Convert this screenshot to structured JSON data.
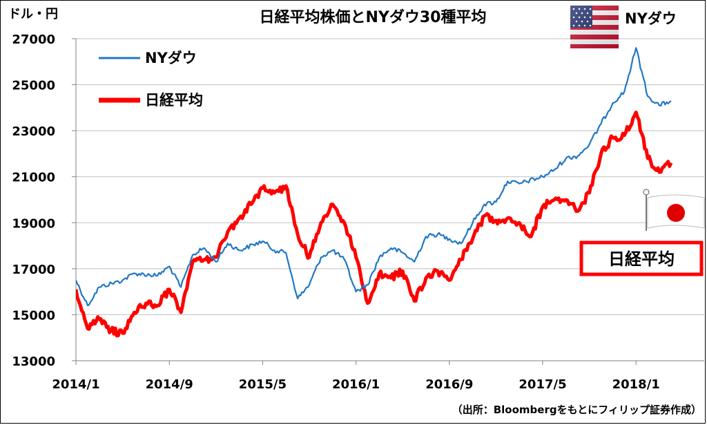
{
  "chart_data": {
    "type": "line",
    "title": "日経平均株価とNYダウ30種平均",
    "ylabel": "ドル・円",
    "ylim": [
      13000,
      27000
    ],
    "y_ticks": [
      "27000",
      "25000",
      "23000",
      "21000",
      "19000",
      "17000",
      "15000",
      "13000"
    ],
    "x_ticks": [
      "2014/1",
      "2014/9",
      "2015/5",
      "2016/1",
      "2016/9",
      "2017/5",
      "2018/1"
    ],
    "grid": true,
    "legend_position": "top-left",
    "source": "（出所：Bloombergをもとにフィリップ証券作成）",
    "callouts": {
      "nydow": "NYダウ",
      "nikkei": "日経平均"
    },
    "series": [
      {
        "name": "NYダウ",
        "color": "#1f77c4",
        "points": [
          [
            "2014-01",
            16500
          ],
          [
            "2014-02",
            15400
          ],
          [
            "2014-03",
            16200
          ],
          [
            "2014-05",
            16500
          ],
          [
            "2014-06",
            16800
          ],
          [
            "2014-08",
            16700
          ],
          [
            "2014-09",
            17100
          ],
          [
            "2014-10",
            16200
          ],
          [
            "2014-11",
            17600
          ],
          [
            "2014-12",
            17900
          ],
          [
            "2015-01",
            17300
          ],
          [
            "2015-02",
            18100
          ],
          [
            "2015-03",
            17800
          ],
          [
            "2015-05",
            18200
          ],
          [
            "2015-06",
            17800
          ],
          [
            "2015-07",
            17700
          ],
          [
            "2015-08",
            15700
          ],
          [
            "2015-09",
            16300
          ],
          [
            "2015-10",
            17500
          ],
          [
            "2015-11",
            17800
          ],
          [
            "2015-12",
            17400
          ],
          [
            "2016-01",
            16000
          ],
          [
            "2016-02",
            16300
          ],
          [
            "2016-03",
            17500
          ],
          [
            "2016-04",
            17900
          ],
          [
            "2016-05",
            17700
          ],
          [
            "2016-06",
            17300
          ],
          [
            "2016-07",
            18400
          ],
          [
            "2016-08",
            18500
          ],
          [
            "2016-09",
            18300
          ],
          [
            "2016-10",
            18100
          ],
          [
            "2016-11",
            19000
          ],
          [
            "2016-12",
            19800
          ],
          [
            "2017-01",
            19900
          ],
          [
            "2017-02",
            20800
          ],
          [
            "2017-03",
            20700
          ],
          [
            "2017-05",
            21000
          ],
          [
            "2017-06",
            21300
          ],
          [
            "2017-07",
            21800
          ],
          [
            "2017-08",
            21900
          ],
          [
            "2017-09",
            22400
          ],
          [
            "2017-10",
            23300
          ],
          [
            "2017-11",
            24200
          ],
          [
            "2017-12",
            24700
          ],
          [
            "2018-01",
            26600
          ],
          [
            "2018-02",
            24500
          ],
          [
            "2018-03",
            24100
          ],
          [
            "2018-04",
            24300
          ]
        ]
      },
      {
        "name": "日経平均",
        "color": "#ff0000",
        "points": [
          [
            "2014-01",
            16100
          ],
          [
            "2014-02",
            14400
          ],
          [
            "2014-03",
            14800
          ],
          [
            "2014-04",
            14300
          ],
          [
            "2014-05",
            14200
          ],
          [
            "2014-06",
            15100
          ],
          [
            "2014-07",
            15500
          ],
          [
            "2014-08",
            15400
          ],
          [
            "2014-09",
            16100
          ],
          [
            "2014-10",
            15100
          ],
          [
            "2014-11",
            17300
          ],
          [
            "2014-12",
            17400
          ],
          [
            "2015-01",
            17500
          ],
          [
            "2015-02",
            18600
          ],
          [
            "2015-03",
            19200
          ],
          [
            "2015-04",
            19800
          ],
          [
            "2015-05",
            20500
          ],
          [
            "2015-06",
            20300
          ],
          [
            "2015-07",
            20600
          ],
          [
            "2015-08",
            18500
          ],
          [
            "2015-09",
            17500
          ],
          [
            "2015-10",
            19000
          ],
          [
            "2015-11",
            19800
          ],
          [
            "2015-12",
            19000
          ],
          [
            "2016-01",
            17500
          ],
          [
            "2016-02",
            15500
          ],
          [
            "2016-03",
            16800
          ],
          [
            "2016-04",
            16600
          ],
          [
            "2016-05",
            16900
          ],
          [
            "2016-06",
            15600
          ],
          [
            "2016-07",
            16600
          ],
          [
            "2016-08",
            16900
          ],
          [
            "2016-09",
            16500
          ],
          [
            "2016-10",
            17400
          ],
          [
            "2016-11",
            18300
          ],
          [
            "2016-12",
            19300
          ],
          [
            "2017-01",
            19100
          ],
          [
            "2017-02",
            19200
          ],
          [
            "2017-03",
            19000
          ],
          [
            "2017-04",
            18400
          ],
          [
            "2017-05",
            19700
          ],
          [
            "2017-06",
            20000
          ],
          [
            "2017-07",
            20000
          ],
          [
            "2017-08",
            19500
          ],
          [
            "2017-09",
            20300
          ],
          [
            "2017-10",
            22000
          ],
          [
            "2017-11",
            22700
          ],
          [
            "2017-12",
            22800
          ],
          [
            "2018-01",
            23800
          ],
          [
            "2018-02",
            21800
          ],
          [
            "2018-03",
            21200
          ],
          [
            "2018-04",
            21600
          ]
        ]
      }
    ]
  }
}
